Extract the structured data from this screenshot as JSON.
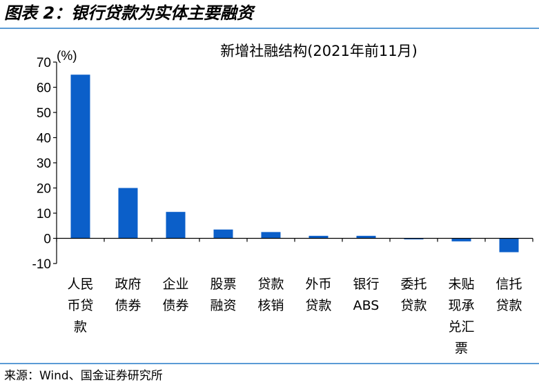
{
  "figure": {
    "title": "图表 2：银行贷款为实体主要融资",
    "source": "来源：Wind、国金证券研究所"
  },
  "colors": {
    "bar": "#0b5fc9",
    "rule": "#5b9bd5"
  },
  "chart_data": {
    "type": "bar",
    "title": "新增社融结构(2021年前11月)",
    "unit_label": "(%)",
    "ylim": [
      -10,
      70
    ],
    "yticks": [
      -10,
      0,
      10,
      20,
      30,
      40,
      50,
      60,
      70
    ],
    "grid": false,
    "categories": [
      [
        "人民",
        "币贷",
        "款"
      ],
      [
        "政府",
        "债券"
      ],
      [
        "企业",
        "债券"
      ],
      [
        "股票",
        "融资"
      ],
      [
        "贷款",
        "核销"
      ],
      [
        "外币",
        "贷款"
      ],
      [
        "银行",
        "ABS"
      ],
      [
        "委托",
        "贷款"
      ],
      [
        "未贴",
        "现承",
        "兑汇",
        "票"
      ],
      [
        "信托",
        "贷款"
      ]
    ],
    "values": [
      65,
      20,
      10.5,
      3.5,
      2.5,
      1,
      1,
      -0.3,
      -1.2,
      -5.5
    ]
  }
}
